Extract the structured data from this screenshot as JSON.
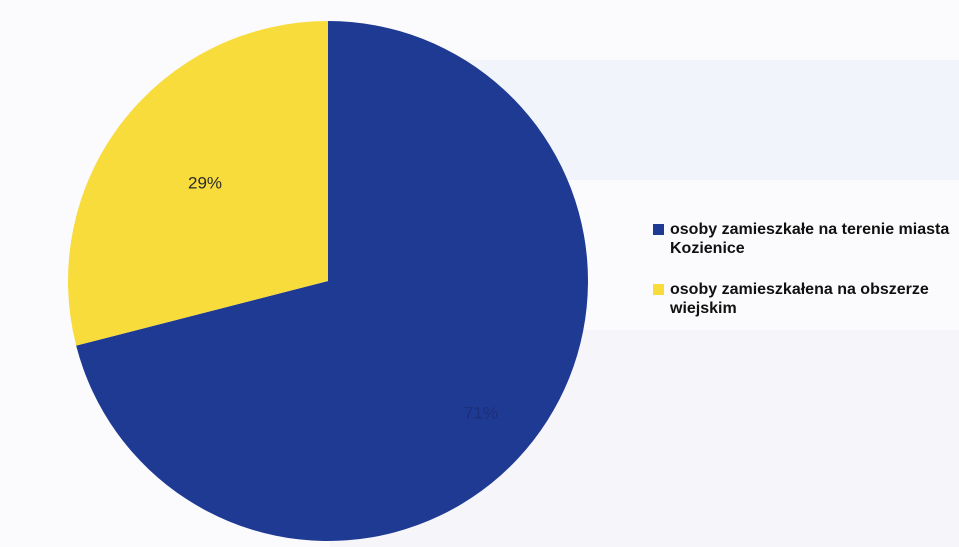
{
  "chart_data": {
    "type": "pie",
    "title": "",
    "categories": [
      "osoby zamieszkałe na terenie miasta Kozienice",
      "osoby zamieszkałena na obszerze wiejskim"
    ],
    "values": [
      71,
      29
    ],
    "data_labels": [
      "71%",
      "29%"
    ],
    "colors": [
      "#1f3a93",
      "#f7dc3c"
    ],
    "label_colors": [
      "#1b2f7a",
      "#2a2a2a"
    ],
    "start_angle_deg": 0,
    "direction": "clockwise",
    "legend_position": "right"
  },
  "legend": {
    "items": [
      {
        "label": "osoby zamieszkałe na terenie miasta Kozienice",
        "color": "#1f3a93"
      },
      {
        "label": "osoby zamieszkałena na obszerze wiejskim",
        "color": "#f7dc3c"
      }
    ]
  }
}
